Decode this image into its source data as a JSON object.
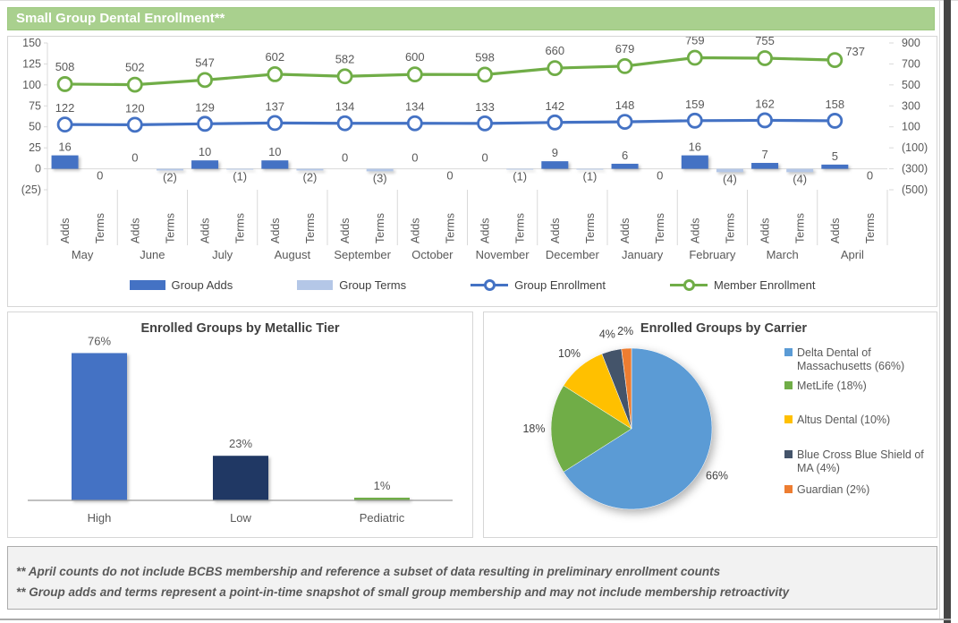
{
  "window": {
    "title_bar": "Small Group Dental Enrollment**"
  },
  "chart_data": [
    {
      "type": "combo",
      "name": "small-group-dental-enrollment-trend",
      "categories": [
        "May",
        "June",
        "July",
        "August",
        "September",
        "October",
        "November",
        "December",
        "January",
        "February",
        "March",
        "April"
      ],
      "sub_categories": [
        "Adds",
        "Terms"
      ],
      "series": [
        {
          "name": "Group Adds",
          "type": "bar",
          "axis": "primary",
          "color": "#4472C4",
          "values": [
            16,
            0,
            10,
            10,
            0,
            0,
            0,
            9,
            6,
            16,
            7,
            5
          ],
          "labels": [
            "16",
            "0",
            "10",
            "10",
            "0",
            "0",
            "0",
            "9",
            "6",
            "16",
            "7",
            "5"
          ]
        },
        {
          "name": "Group Terms",
          "type": "bar",
          "axis": "primary",
          "color": "#B4C7E7",
          "values": [
            0,
            -2,
            -1,
            -2,
            -3,
            0,
            -1,
            -1,
            0,
            -4,
            -4,
            0
          ],
          "labels": [
            "0",
            "(2)",
            "(1)",
            "(2)",
            "(3)",
            "0",
            "(1)",
            "(1)",
            "0",
            "(4)",
            "(4)",
            "0"
          ]
        },
        {
          "name": "Group Enrollment",
          "type": "line",
          "axis": "secondary",
          "color": "#4472C4",
          "values": [
            122,
            120,
            129,
            137,
            134,
            134,
            133,
            142,
            148,
            159,
            162,
            158
          ]
        },
        {
          "name": "Member Enrollment",
          "type": "line",
          "axis": "secondary",
          "color": "#70AD47",
          "values": [
            508,
            502,
            547,
            602,
            582,
            600,
            598,
            660,
            679,
            759,
            755,
            737
          ]
        }
      ],
      "primary_axis": {
        "ticks": [
          "150",
          "125",
          "100",
          "75",
          "50",
          "25",
          "0",
          "(25)"
        ],
        "max": 150,
        "min": -25
      },
      "secondary_axis": {
        "ticks": [
          "900",
          "700",
          "500",
          "300",
          "100",
          "(100)",
          "(300)",
          "(500)"
        ],
        "max": 900,
        "min": -500
      },
      "legend_position": "bottom",
      "gridlines": "zero-only"
    },
    {
      "type": "bar",
      "title": "Enrolled Groups by Metallic Tier",
      "categories": [
        "High",
        "Low",
        "Pediatric"
      ],
      "values": [
        76,
        23,
        1
      ],
      "value_labels": [
        "76%",
        "23%",
        "1%"
      ],
      "colors": [
        "#4472C4",
        "#203864",
        "#70AD47"
      ],
      "ylim": [
        0,
        80
      ],
      "grid": false
    },
    {
      "type": "pie",
      "title": "Enrolled Groups by Carrier",
      "slices": [
        {
          "label": "Delta Dental of Massachusetts (66%)",
          "pct_label": "66%",
          "value": 66,
          "color": "#5B9BD5"
        },
        {
          "label": "MetLife (18%)",
          "pct_label": "18%",
          "value": 18,
          "color": "#70AD47"
        },
        {
          "label": "Altus Dental (10%)",
          "pct_label": "10%",
          "value": 10,
          "color": "#FFC000"
        },
        {
          "label": "Blue Cross Blue Shield of MA (4%)",
          "pct_label": "4%",
          "value": 4,
          "color": "#44546A"
        },
        {
          "label": "Guardian (2%)",
          "pct_label": "2%",
          "value": 2,
          "color": "#ED7D31"
        }
      ],
      "legend_position": "right"
    }
  ],
  "footnotes": [
    "** April counts do not include BCBS membership and reference a subset of data resulting in preliminary enrollment counts",
    "** Group adds and terms represent a point-in-time snapshot of small group membership and may not include membership retroactivity"
  ]
}
